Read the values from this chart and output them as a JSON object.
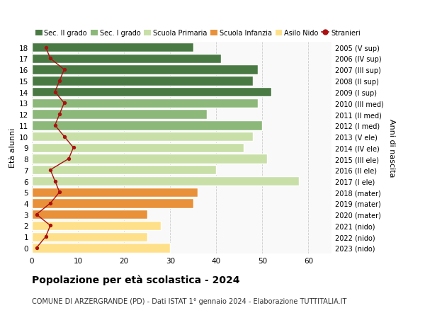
{
  "ages": [
    0,
    1,
    2,
    3,
    4,
    5,
    6,
    7,
    8,
    9,
    10,
    11,
    12,
    13,
    14,
    15,
    16,
    17,
    18
  ],
  "bar_values": [
    30,
    25,
    28,
    25,
    35,
    36,
    58,
    40,
    51,
    46,
    48,
    50,
    38,
    49,
    52,
    48,
    49,
    41,
    35
  ],
  "bar_colors": [
    "#FFE08A",
    "#FFE08A",
    "#FFE08A",
    "#E8913A",
    "#E8913A",
    "#E8913A",
    "#C8DFA8",
    "#C8DFA8",
    "#C8DFA8",
    "#C8DFA8",
    "#C8DFA8",
    "#8CB87A",
    "#8CB87A",
    "#8CB87A",
    "#4A7A44",
    "#4A7A44",
    "#4A7A44",
    "#4A7A44",
    "#4A7A44"
  ],
  "stranieri_values": [
    1,
    3,
    4,
    1,
    4,
    6,
    5,
    4,
    8,
    9,
    7,
    5,
    6,
    7,
    5,
    6,
    7,
    4,
    3
  ],
  "right_labels": [
    "2023 (nido)",
    "2022 (nido)",
    "2021 (nido)",
    "2020 (mater)",
    "2019 (mater)",
    "2018 (mater)",
    "2017 (I ele)",
    "2016 (II ele)",
    "2015 (III ele)",
    "2014 (IV ele)",
    "2013 (V ele)",
    "2012 (I med)",
    "2011 (II med)",
    "2010 (III med)",
    "2009 (I sup)",
    "2008 (II sup)",
    "2007 (III sup)",
    "2006 (IV sup)",
    "2005 (V sup)"
  ],
  "ylabel_left": "Età alunni",
  "ylabel_right": "Anni di nascita",
  "xlim": [
    0,
    65
  ],
  "xticks": [
    0,
    10,
    20,
    30,
    40,
    50,
    60
  ],
  "title": "Popolazione per età scolastica - 2024",
  "subtitle": "COMUNE DI ARZERGRANDE (PD) - Dati ISTAT 1° gennaio 2024 - Elaborazione TUTTITALIA.IT",
  "legend_entries": [
    {
      "label": "Sec. II grado",
      "color": "#4A7A44"
    },
    {
      "label": "Sec. I grado",
      "color": "#8CB87A"
    },
    {
      "label": "Scuola Primaria",
      "color": "#C8DFA8"
    },
    {
      "label": "Scuola Infanzia",
      "color": "#E8913A"
    },
    {
      "label": "Asilo Nido",
      "color": "#FFE08A"
    },
    {
      "label": "Stranieri",
      "color": "#AA1111"
    }
  ],
  "background_color": "#FFFFFF",
  "plot_bg_color": "#F9F9F9",
  "grid_color": "#CCCCCC"
}
